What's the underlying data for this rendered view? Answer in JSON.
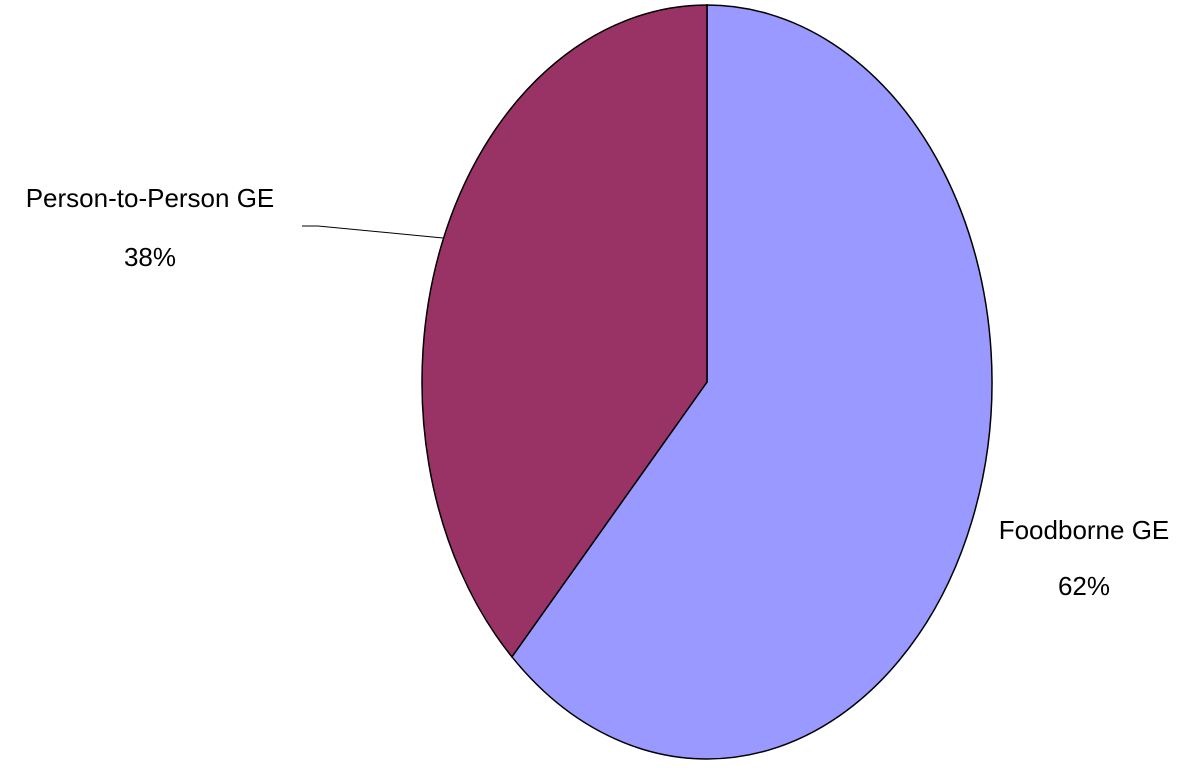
{
  "chart_data": {
    "type": "pie",
    "title": "",
    "slices": [
      {
        "label": "Foodborne GE",
        "value": 62,
        "value_label": "62%",
        "color": "#9999ff"
      },
      {
        "label": "Person-to-Person GE",
        "value": 38,
        "value_label": "38%",
        "color": "#993366"
      }
    ],
    "start_angle": "12 o'clock",
    "direction": "clockwise",
    "legend": "none",
    "outline_color": "#000000"
  }
}
